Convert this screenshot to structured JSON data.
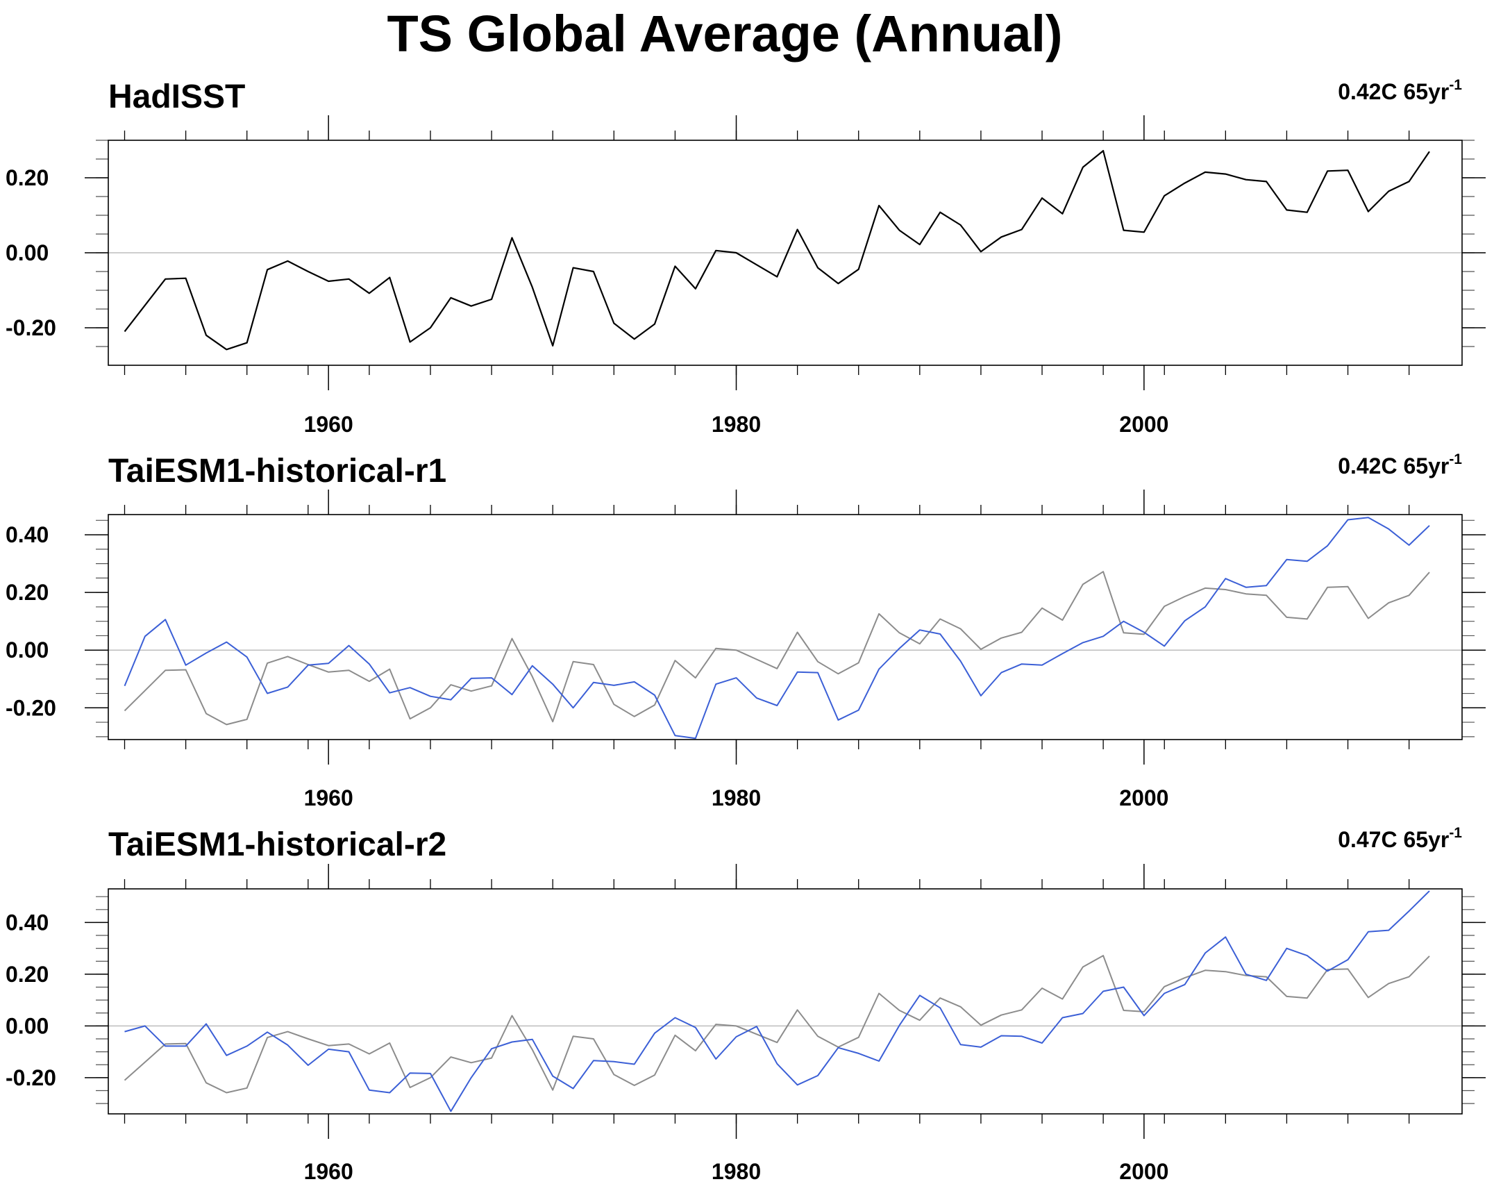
{
  "title": "TS Global Average (Annual)",
  "colors": {
    "obs": "#000000",
    "obs_ref": "#8c8c8c",
    "model": "#3b5fd6",
    "zero_line": "#bdbdbd"
  },
  "chart_data": [
    {
      "type": "line",
      "title": "HadISST",
      "trend_label": "0.42C 65yr",
      "trend_sup": "-1",
      "x": [
        1950,
        1951,
        1952,
        1953,
        1954,
        1955,
        1956,
        1957,
        1958,
        1959,
        1960,
        1961,
        1962,
        1963,
        1964,
        1965,
        1966,
        1967,
        1968,
        1969,
        1970,
        1971,
        1972,
        1973,
        1974,
        1975,
        1976,
        1977,
        1978,
        1979,
        1980,
        1981,
        1982,
        1983,
        1984,
        1985,
        1986,
        1987,
        1988,
        1989,
        1990,
        1991,
        1992,
        1993,
        1994,
        1995,
        1996,
        1997,
        1998,
        1999,
        2000,
        2001,
        2002,
        2003,
        2004,
        2005,
        2006,
        2007,
        2008,
        2009,
        2010,
        2011,
        2012,
        2013,
        2014
      ],
      "xlim": [
        1949.2,
        2015.6
      ],
      "xticks": [
        1960,
        1980,
        2000
      ],
      "ylim": [
        -0.3,
        0.3
      ],
      "yticks": [
        -0.2,
        0.0,
        0.2
      ],
      "series": [
        {
          "role": "obs",
          "values": [
            -0.21,
            -0.14,
            -0.07,
            -0.068,
            -0.22,
            -0.258,
            -0.24,
            -0.045,
            -0.022,
            -0.05,
            -0.076,
            -0.07,
            -0.108,
            -0.066,
            -0.238,
            -0.2,
            -0.12,
            -0.142,
            -0.124,
            0.04,
            -0.092,
            -0.248,
            -0.04,
            -0.05,
            -0.188,
            -0.23,
            -0.19,
            -0.036,
            -0.096,
            0.006,
            0.0,
            -0.032,
            -0.064,
            0.062,
            -0.04,
            -0.082,
            -0.044,
            0.126,
            0.06,
            0.022,
            0.108,
            0.074,
            0.003,
            0.042,
            0.062,
            0.146,
            0.104,
            0.228,
            0.272,
            0.06,
            0.055,
            0.152,
            0.186,
            0.215,
            0.21,
            0.195,
            0.19,
            0.114,
            0.108,
            0.218,
            0.22,
            0.11,
            0.164,
            0.19,
            0.27
          ]
        }
      ]
    },
    {
      "type": "line",
      "title": "TaiESM1-historical-r1",
      "trend_label": "0.42C 65yr",
      "trend_sup": "-1",
      "x": [
        1950,
        1951,
        1952,
        1953,
        1954,
        1955,
        1956,
        1957,
        1958,
        1959,
        1960,
        1961,
        1962,
        1963,
        1964,
        1965,
        1966,
        1967,
        1968,
        1969,
        1970,
        1971,
        1972,
        1973,
        1974,
        1975,
        1976,
        1977,
        1978,
        1979,
        1980,
        1981,
        1982,
        1983,
        1984,
        1985,
        1986,
        1987,
        1988,
        1989,
        1990,
        1991,
        1992,
        1993,
        1994,
        1995,
        1996,
        1997,
        1998,
        1999,
        2000,
        2001,
        2002,
        2003,
        2004,
        2005,
        2006,
        2007,
        2008,
        2009,
        2010,
        2011,
        2012,
        2013,
        2014
      ],
      "xlim": [
        1949.2,
        2015.6
      ],
      "xticks": [
        1960,
        1980,
        2000
      ],
      "ylim": [
        -0.31,
        0.47
      ],
      "yticks": [
        -0.2,
        0.0,
        0.2,
        0.4
      ],
      "series": [
        {
          "role": "obs_ref",
          "values": [
            -0.21,
            -0.14,
            -0.07,
            -0.068,
            -0.22,
            -0.258,
            -0.24,
            -0.045,
            -0.022,
            -0.05,
            -0.076,
            -0.07,
            -0.108,
            -0.066,
            -0.238,
            -0.2,
            -0.12,
            -0.142,
            -0.124,
            0.04,
            -0.092,
            -0.248,
            -0.04,
            -0.05,
            -0.188,
            -0.23,
            -0.19,
            -0.036,
            -0.096,
            0.006,
            0.0,
            -0.032,
            -0.064,
            0.062,
            -0.04,
            -0.082,
            -0.044,
            0.126,
            0.06,
            0.022,
            0.108,
            0.074,
            0.003,
            0.042,
            0.062,
            0.146,
            0.104,
            0.228,
            0.272,
            0.06,
            0.055,
            0.152,
            0.186,
            0.215,
            0.21,
            0.195,
            0.19,
            0.114,
            0.108,
            0.218,
            0.22,
            0.11,
            0.164,
            0.19,
            0.27
          ]
        },
        {
          "role": "model",
          "values": [
            -0.124,
            0.048,
            0.106,
            -0.052,
            -0.01,
            0.028,
            -0.024,
            -0.15,
            -0.128,
            -0.052,
            -0.046,
            0.016,
            -0.048,
            -0.148,
            -0.13,
            -0.16,
            -0.172,
            -0.098,
            -0.096,
            -0.154,
            -0.054,
            -0.118,
            -0.2,
            -0.112,
            -0.122,
            -0.11,
            -0.156,
            -0.296,
            -0.306,
            -0.118,
            -0.096,
            -0.166,
            -0.192,
            -0.076,
            -0.078,
            -0.242,
            -0.208,
            -0.066,
            0.006,
            0.07,
            0.056,
            -0.038,
            -0.158,
            -0.078,
            -0.048,
            -0.052,
            -0.012,
            0.026,
            0.048,
            0.1,
            0.062,
            0.014,
            0.102,
            0.15,
            0.248,
            0.218,
            0.224,
            0.314,
            0.308,
            0.362,
            0.452,
            0.46,
            0.42,
            0.364,
            0.432
          ]
        }
      ]
    },
    {
      "type": "line",
      "title": "TaiESM1-historical-r2",
      "trend_label": "0.47C 65yr",
      "trend_sup": "-1",
      "x": [
        1950,
        1951,
        1952,
        1953,
        1954,
        1955,
        1956,
        1957,
        1958,
        1959,
        1960,
        1961,
        1962,
        1963,
        1964,
        1965,
        1966,
        1967,
        1968,
        1969,
        1970,
        1971,
        1972,
        1973,
        1974,
        1975,
        1976,
        1977,
        1978,
        1979,
        1980,
        1981,
        1982,
        1983,
        1984,
        1985,
        1986,
        1987,
        1988,
        1989,
        1990,
        1991,
        1992,
        1993,
        1994,
        1995,
        1996,
        1997,
        1998,
        1999,
        2000,
        2001,
        2002,
        2003,
        2004,
        2005,
        2006,
        2007,
        2008,
        2009,
        2010,
        2011,
        2012,
        2013,
        2014
      ],
      "xlim": [
        1949.2,
        2015.6
      ],
      "xticks": [
        1960,
        1980,
        2000
      ],
      "ylim": [
        -0.34,
        0.53
      ],
      "yticks": [
        -0.2,
        0.0,
        0.2,
        0.4
      ],
      "series": [
        {
          "role": "obs_ref",
          "values": [
            -0.21,
            -0.14,
            -0.07,
            -0.068,
            -0.22,
            -0.258,
            -0.24,
            -0.045,
            -0.022,
            -0.05,
            -0.076,
            -0.07,
            -0.108,
            -0.066,
            -0.238,
            -0.2,
            -0.12,
            -0.142,
            -0.124,
            0.04,
            -0.092,
            -0.248,
            -0.04,
            -0.05,
            -0.188,
            -0.23,
            -0.19,
            -0.036,
            -0.096,
            0.006,
            0.0,
            -0.032,
            -0.064,
            0.062,
            -0.04,
            -0.082,
            -0.044,
            0.126,
            0.06,
            0.022,
            0.108,
            0.074,
            0.003,
            0.042,
            0.062,
            0.146,
            0.104,
            0.228,
            0.272,
            0.06,
            0.055,
            0.152,
            0.186,
            0.215,
            0.21,
            0.195,
            0.19,
            0.114,
            0.108,
            0.218,
            0.22,
            0.11,
            0.164,
            0.19,
            0.27
          ]
        },
        {
          "role": "model",
          "values": [
            -0.022,
            0.0,
            -0.078,
            -0.078,
            0.008,
            -0.114,
            -0.078,
            -0.024,
            -0.074,
            -0.152,
            -0.09,
            -0.1,
            -0.248,
            -0.258,
            -0.182,
            -0.184,
            -0.33,
            -0.2,
            -0.088,
            -0.062,
            -0.052,
            -0.194,
            -0.242,
            -0.134,
            -0.138,
            -0.148,
            -0.028,
            0.032,
            -0.006,
            -0.128,
            -0.042,
            -0.002,
            -0.146,
            -0.228,
            -0.192,
            -0.084,
            -0.106,
            -0.136,
            0.002,
            0.118,
            0.07,
            -0.072,
            -0.082,
            -0.038,
            -0.04,
            -0.066,
            0.032,
            0.048,
            0.134,
            0.15,
            0.04,
            0.126,
            0.16,
            0.282,
            0.344,
            0.2,
            0.176,
            0.3,
            0.272,
            0.212,
            0.256,
            0.364,
            0.37,
            0.444,
            0.522
          ]
        }
      ]
    }
  ]
}
